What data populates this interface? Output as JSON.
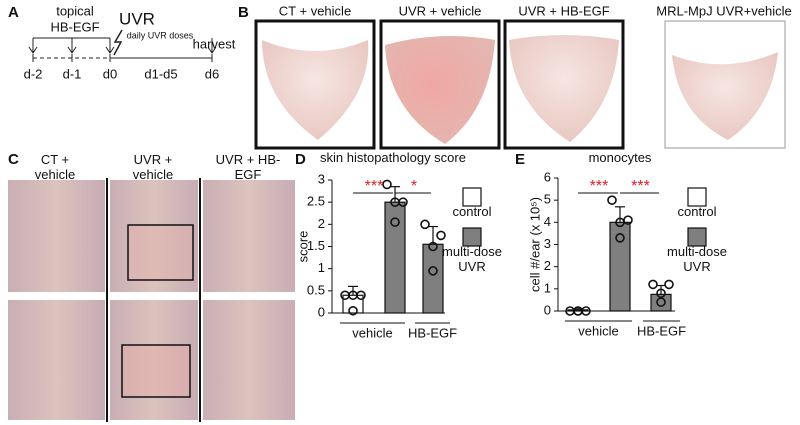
{
  "panels": {
    "A": {
      "label": "A",
      "treatment_line1": "topical",
      "treatment_line2": "HB-EGF",
      "exposure": "UVR",
      "dose_note": "daily UVR doses",
      "endpoint": "harvest",
      "days": [
        "d-2",
        "d-1",
        "d0",
        "d1-d5",
        "d6"
      ]
    },
    "B": {
      "label": "B",
      "captions": [
        "CT + vehicle",
        "UVR + vehicle",
        "UVR + HB-EGF",
        "MRL-MpJ UVR+vehicle"
      ]
    },
    "C": {
      "label": "C",
      "columns": [
        "CT + vehicle",
        "UVR + vehicle",
        "UVR + HB-EGF"
      ]
    }
  },
  "chart_data": [
    {
      "type": "bar",
      "panel_label": "D",
      "title": "skin histopathology score",
      "y_label": "score",
      "categories": [
        "vehicle",
        "HB-EGF"
      ],
      "ylim": [
        0,
        3
      ],
      "yticks": [
        0,
        0.5,
        1,
        1.5,
        2,
        2.5,
        3
      ],
      "series": [
        {
          "name": "control",
          "color": "#ffffff",
          "values": [
            0.4,
            null
          ],
          "errors": [
            0.2,
            null
          ],
          "points": [
            [
              0.4,
              0.4,
              0.4,
              0.05
            ],
            null
          ]
        },
        {
          "name": "multi-dose UVR",
          "color": "#7f7f7f",
          "values": [
            2.5,
            1.55
          ],
          "errors": [
            0.35,
            0.4
          ],
          "points": [
            [
              2.9,
              2.5,
              2.5,
              2.05
            ],
            [
              2.0,
              1.75,
              1.5,
              0.95
            ]
          ]
        }
      ],
      "annotations": [
        "***",
        "*"
      ],
      "annotation_color": "#e0202a"
    },
    {
      "type": "bar",
      "panel_label": "E",
      "title": "monocytes",
      "y_label": "cell #/ear (x 10⁵)",
      "categories": [
        "vehicle",
        "HB-EGF"
      ],
      "ylim": [
        0,
        6
      ],
      "yticks": [
        0,
        1,
        2,
        3,
        4,
        5,
        6
      ],
      "series": [
        {
          "name": "control",
          "color": "#ffffff",
          "values": [
            0.05,
            null
          ],
          "errors": [
            0.05,
            null
          ],
          "points": [
            [
              0,
              0,
              0,
              0
            ],
            null
          ]
        },
        {
          "name": "multi-dose UVR",
          "color": "#7f7f7f",
          "values": [
            4.0,
            0.75
          ],
          "errors": [
            0.7,
            0.4
          ],
          "points": [
            [
              5.0,
              4.1,
              4.0,
              3.3
            ],
            [
              1.2,
              1.2,
              0.8,
              0.4
            ]
          ]
        }
      ],
      "annotations": [
        "***",
        "***"
      ],
      "annotation_color": "#e0202a"
    }
  ]
}
